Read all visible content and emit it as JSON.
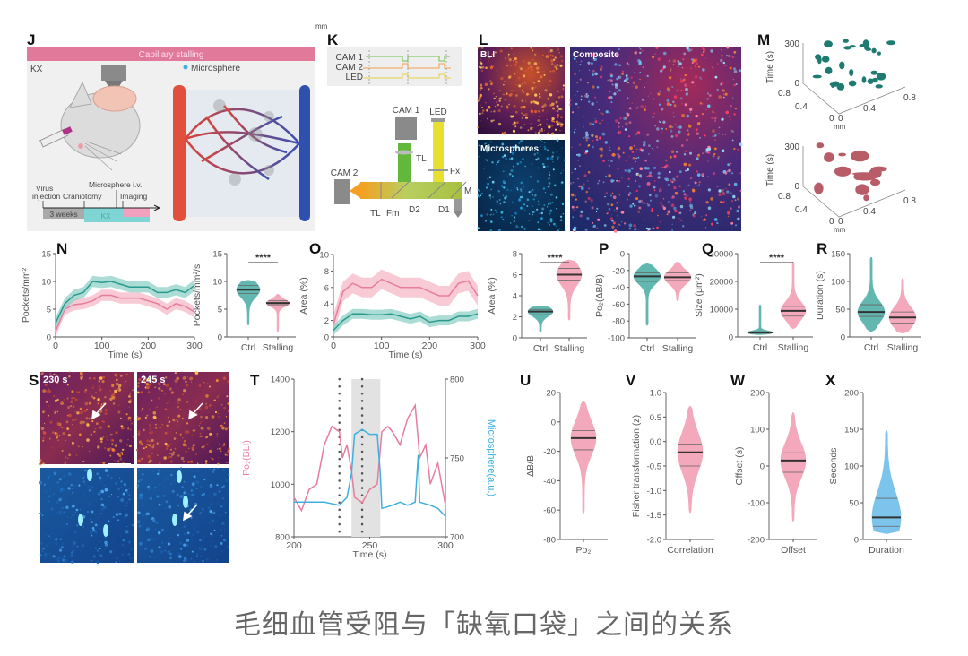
{
  "figure": {
    "caption": "毛细血管受阻与「缺氧口袋」之间的关系",
    "stray_unit": "mm",
    "panel_labels": {
      "J": "J",
      "K": "K",
      "L": "L",
      "M": "M",
      "N": "N",
      "O": "O",
      "P": "P",
      "Q": "Q",
      "R": "R",
      "S": "S",
      "T": "T",
      "U": "U",
      "V": "V",
      "W": "W",
      "X": "X"
    }
  },
  "panel_J": {
    "banner": "Capillary stalling",
    "condition": "KX",
    "legend": "Microsphere",
    "timeline": {
      "virus": "Virus",
      "injection": "injection",
      "craniotomy": "Craniotomy",
      "microsphere": "Microsphere i.v.",
      "imaging": "Imaging",
      "weeks": "3 weeks",
      "kx": "KX"
    }
  },
  "panel_K": {
    "signals": [
      "CAM 1",
      "CAM 2",
      "LED"
    ],
    "components": {
      "cam1": "CAM 1",
      "led": "LED",
      "cam2": "CAM 2",
      "tl_top": "TL",
      "tl_side": "TL",
      "fx": "Fx",
      "fm": "Fm",
      "d2": "D2",
      "d1": "D1",
      "m": "M"
    }
  },
  "panel_L": {
    "bli": "BLI",
    "microspheres": "Microspheres",
    "composite": "Composite"
  },
  "panel_M": {
    "ylabel": "Time (s)",
    "xlabel": "mm",
    "time_ticks": [
      "300",
      "0"
    ],
    "left_ticks": [
      "0.8",
      "0.4",
      "0"
    ],
    "right_ticks": [
      "0",
      "0.4",
      "0.8"
    ]
  },
  "panel_S": {
    "t1": "230 s",
    "t2": "245 s"
  },
  "colors": {
    "stalling": "#e67d9c",
    "stalling_band": "#f5b8c8",
    "ctrl": "#2b9a8e",
    "ctrl_band": "#8fd0c7",
    "microsphere": "#3fb0e0",
    "violin_pink": "#f3a8bb",
    "violin_teal": "#62b7b1",
    "violin_blue": "#7cc4ec"
  },
  "chart_data": [
    {
      "panel": "N",
      "type": "line",
      "xlabel": "Time (s)",
      "ylabel": "Pockets/mm²",
      "xlim": [
        0,
        300
      ],
      "ylim": [
        0,
        15
      ],
      "xticks": [
        0,
        100,
        200,
        300
      ],
      "yticks": [
        0,
        5,
        10,
        15
      ],
      "x": [
        0,
        20,
        40,
        60,
        80,
        100,
        120,
        140,
        160,
        180,
        200,
        220,
        240,
        260,
        280,
        300
      ],
      "series": [
        {
          "color": "#e67d9c",
          "band_color": "#f5b8c8",
          "band": 1.0,
          "values": [
            1,
            5,
            5.8,
            6,
            6.5,
            7.5,
            7.5,
            7,
            7,
            7,
            6.5,
            6,
            5,
            6,
            5.5,
            4.5
          ]
        },
        {
          "color": "#2b9a8e",
          "band_color": "#8fd0c7",
          "band": 1.0,
          "values": [
            2.5,
            6,
            7.5,
            8,
            10,
            9.8,
            10,
            9.5,
            9,
            9,
            9,
            8,
            8,
            8.5,
            8,
            9.3
          ]
        }
      ]
    },
    {
      "panel": "N",
      "type": "violin",
      "ylabel": "Pockets/mm²/s",
      "ylim": [
        0,
        15
      ],
      "yticks": [
        0,
        5,
        10,
        15
      ],
      "categories": [
        "Ctrl",
        "Stalling"
      ],
      "significance": "****",
      "groups": [
        {
          "min": 2.2,
          "q1": 7.8,
          "median": 8.5,
          "q3": 9.3,
          "max": 10.2,
          "color": "#62b7b1"
        },
        {
          "min": 1.0,
          "q1": 5.8,
          "median": 6.1,
          "q3": 6.5,
          "max": 7.7,
          "color": "#f3a8bb"
        }
      ]
    },
    {
      "panel": "O",
      "type": "line",
      "xlabel": "Time (s)",
      "ylabel": "Area (%)",
      "xlim": [
        0,
        300
      ],
      "ylim": [
        0,
        10
      ],
      "xticks": [
        0,
        100,
        200,
        300
      ],
      "yticks": [
        0,
        2,
        4,
        6,
        8,
        10
      ],
      "x": [
        0,
        20,
        40,
        60,
        80,
        100,
        120,
        140,
        160,
        180,
        200,
        220,
        240,
        260,
        280,
        300
      ],
      "series": [
        {
          "color": "#e67d9c",
          "band_color": "#f5b8c8",
          "band": 1.2,
          "values": [
            1.5,
            5.5,
            6.5,
            6,
            6,
            7,
            6.5,
            6,
            6,
            6,
            5.5,
            5,
            5,
            6.5,
            6.8,
            5
          ]
        },
        {
          "color": "#2b9a8e",
          "band_color": "#8fd0c7",
          "band": 0.6,
          "values": [
            0.8,
            2,
            2.8,
            2.8,
            2.7,
            2.7,
            2.8,
            2.5,
            2.2,
            2.5,
            1.8,
            2,
            2,
            2.5,
            2.5,
            2.8
          ]
        }
      ]
    },
    {
      "panel": "O",
      "type": "violin",
      "ylabel": "Area (%)",
      "ylim": [
        0,
        8
      ],
      "yticks": [
        0,
        2,
        4,
        6,
        8
      ],
      "categories": [
        "Ctrl",
        "Stalling"
      ],
      "significance": "****",
      "groups": [
        {
          "min": 0.6,
          "q1": 2.2,
          "median": 2.5,
          "q3": 2.7,
          "max": 3.0,
          "color": "#62b7b1"
        },
        {
          "min": 1.7,
          "q1": 5.5,
          "median": 6.0,
          "q3": 6.6,
          "max": 7.4,
          "color": "#f3a8bb"
        }
      ]
    },
    {
      "panel": "P",
      "type": "violin",
      "ylabel": "Po₂(ΔB/B)",
      "ylim": [
        -100,
        0
      ],
      "yticks": [
        -100,
        -80,
        -60,
        -40,
        -20,
        0
      ],
      "categories": [
        "Ctrl",
        "Stalling"
      ],
      "groups": [
        {
          "min": -85,
          "q1": -33,
          "median": -27,
          "q3": -23,
          "max": -12,
          "color": "#62b7b1"
        },
        {
          "min": -56,
          "q1": -32,
          "median": -28,
          "q3": -23,
          "max": -10,
          "color": "#f3a8bb"
        }
      ]
    },
    {
      "panel": "Q",
      "type": "violin",
      "ylabel": "Size (μm²)",
      "ylim": [
        0,
        30000
      ],
      "yticks": [
        0,
        10000,
        20000,
        30000
      ],
      "categories": [
        "Ctrl",
        "Stalling"
      ],
      "significance": "****",
      "groups": [
        {
          "min": 800,
          "q1": 1300,
          "median": 1600,
          "q3": 1900,
          "max": 11500,
          "color": "#62b7b1"
        },
        {
          "min": 3000,
          "q1": 7500,
          "median": 9400,
          "q3": 11000,
          "max": 27000,
          "color": "#f3a8bb"
        }
      ]
    },
    {
      "panel": "R",
      "type": "violin",
      "ylabel": "Duration (s)",
      "ylim": [
        0,
        150
      ],
      "yticks": [
        0,
        50,
        100,
        150
      ],
      "categories": [
        "Ctrl",
        "Stalling"
      ],
      "groups": [
        {
          "min": 10,
          "q1": 37,
          "median": 45,
          "q3": 58,
          "max": 143,
          "color": "#62b7b1"
        },
        {
          "min": 7,
          "q1": 25,
          "median": 35,
          "q3": 45,
          "max": 105,
          "color": "#f3a8bb"
        }
      ]
    },
    {
      "panel": "T",
      "type": "line",
      "xlabel": "Time (s)",
      "ylabel": "Po₂(BLI)",
      "ylabel_right": "Microsphere(a.u.)",
      "xlim": [
        200,
        300
      ],
      "ylim": [
        800,
        1400
      ],
      "ylim_right": [
        700,
        800
      ],
      "xticks": [
        200,
        250,
        300
      ],
      "yticks": [
        800,
        1000,
        1200,
        1400
      ],
      "yticks_right": [
        700,
        750,
        800
      ],
      "shaded_range": [
        238,
        257
      ],
      "dotted_markers": [
        230,
        245
      ],
      "series": [
        {
          "axis": "left",
          "color": "#e67d9c",
          "x": [
            200,
            205,
            210,
            215,
            220,
            225,
            230,
            232,
            235,
            238,
            240,
            245,
            250,
            255,
            258,
            262,
            265,
            270,
            275,
            280,
            283,
            287,
            290,
            295,
            300
          ],
          "values": [
            950,
            900,
            980,
            1000,
            1150,
            1220,
            1200,
            1100,
            1150,
            1050,
            950,
            930,
            980,
            1000,
            1200,
            1220,
            1200,
            1150,
            1250,
            1300,
            1100,
            1150,
            1000,
            1080,
            920
          ]
        },
        {
          "axis": "right",
          "color": "#3fb0e0",
          "x": [
            200,
            210,
            220,
            230,
            235,
            238,
            240,
            245,
            250,
            255,
            257,
            258,
            265,
            270,
            275,
            280,
            282,
            283,
            290,
            295,
            300
          ],
          "values": [
            722,
            722,
            722,
            720,
            725,
            740,
            765,
            768,
            765,
            765,
            740,
            718,
            720,
            722,
            720,
            722,
            752,
            722,
            720,
            718,
            713
          ]
        }
      ]
    },
    {
      "panel": "U",
      "type": "violin",
      "ylabel": "ΔB/B",
      "ylim": [
        -80,
        20
      ],
      "yticks": [
        -80,
        -60,
        -40,
        -20,
        0,
        20
      ],
      "categories": [
        "Po₂"
      ],
      "groups": [
        {
          "min": -62,
          "q1": -19,
          "median": -11,
          "q3": -6,
          "max": 14,
          "color": "#f3a8bb"
        }
      ]
    },
    {
      "panel": "V",
      "type": "violin",
      "ylabel": "Fisher transformation (z)",
      "ylim": [
        -2.0,
        1.0
      ],
      "yticks": [
        "-2.0",
        "-1.5",
        "-1.0",
        "-0.5",
        "0.0",
        "0.5",
        "1.0"
      ],
      "categories": [
        "Correlation"
      ],
      "groups": [
        {
          "min": -1.45,
          "q1": -0.5,
          "median": -0.22,
          "q3": -0.05,
          "max": 0.72,
          "color": "#f3a8bb"
        }
      ]
    },
    {
      "panel": "W",
      "type": "violin",
      "ylabel": "Offset (s)",
      "ylim": [
        -200,
        200
      ],
      "yticks": [
        -200,
        -100,
        0,
        100,
        200
      ],
      "categories": [
        "Offset"
      ],
      "groups": [
        {
          "min": -150,
          "q1": -17,
          "median": 15,
          "q3": 36,
          "max": 145,
          "color": "#f3a8bb"
        }
      ]
    },
    {
      "panel": "X",
      "type": "violin",
      "ylabel": "Seconds",
      "ylim": [
        0,
        200
      ],
      "yticks": [
        0,
        50,
        100,
        150,
        200
      ],
      "categories": [
        "Duration"
      ],
      "groups": [
        {
          "min": 8,
          "q1": 18,
          "median": 30,
          "q3": 56,
          "max": 148,
          "color": "#7cc4ec"
        }
      ]
    }
  ]
}
